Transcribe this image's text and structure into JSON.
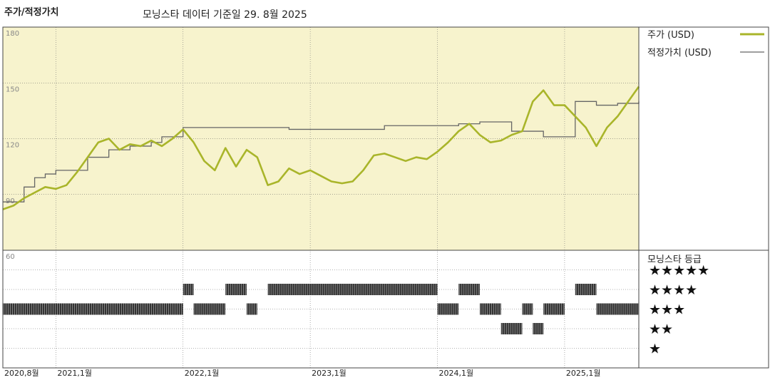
{
  "header": {
    "title": "주가/적정가치",
    "subtitle": "모닝스타 데이터 기준일 29. 8월 2025"
  },
  "legend": {
    "price_label": "주가 (USD)",
    "fair_label": "적정가치 (USD)",
    "rating_title": "모닝스타 등급"
  },
  "colors": {
    "price": "#a9b52a",
    "fair": "#666666",
    "background_top": "#f7f3cd",
    "rating_bar": "#333333"
  },
  "chart_data": {
    "type": "line",
    "title": "",
    "xlabel": "",
    "ylabel": "",
    "ylim": [
      60,
      180
    ],
    "y_ticks": [
      "180",
      "150",
      "120",
      "90",
      "60"
    ],
    "x_ticks": [
      "2020,8월",
      "2021,1월",
      "2022,1월",
      "2023,1월",
      "2024,1월",
      "2025,1월"
    ],
    "x_tick_dates": [
      "2020-08",
      "2021-01",
      "2022-01",
      "2023-01",
      "2024-01",
      "2025-01"
    ],
    "x_range": [
      "2020-08",
      "2025-08"
    ],
    "series": [
      {
        "name": "주가 (USD)",
        "x": [
          "2020-08",
          "2020-09",
          "2020-10",
          "2020-11",
          "2020-12",
          "2021-01",
          "2021-02",
          "2021-03",
          "2021-04",
          "2021-05",
          "2021-06",
          "2021-07",
          "2021-08",
          "2021-09",
          "2021-10",
          "2021-11",
          "2021-12",
          "2022-01",
          "2022-02",
          "2022-03",
          "2022-04",
          "2022-05",
          "2022-06",
          "2022-07",
          "2022-08",
          "2022-09",
          "2022-10",
          "2022-11",
          "2022-12",
          "2023-01",
          "2023-02",
          "2023-03",
          "2023-04",
          "2023-05",
          "2023-06",
          "2023-07",
          "2023-08",
          "2023-09",
          "2023-10",
          "2023-11",
          "2023-12",
          "2024-01",
          "2024-02",
          "2024-03",
          "2024-04",
          "2024-05",
          "2024-06",
          "2024-07",
          "2024-08",
          "2024-09",
          "2024-10",
          "2024-11",
          "2024-12",
          "2025-01",
          "2025-02",
          "2025-03",
          "2025-04",
          "2025-05",
          "2025-06",
          "2025-07",
          "2025-08"
        ],
        "values": [
          82,
          84,
          88,
          91,
          94,
          93,
          95,
          102,
          110,
          118,
          120,
          114,
          117,
          116,
          119,
          116,
          120,
          125,
          118,
          108,
          103,
          115,
          105,
          114,
          110,
          95,
          97,
          104,
          101,
          103,
          100,
          97,
          96,
          97,
          103,
          111,
          112,
          110,
          108,
          110,
          109,
          113,
          118,
          124,
          128,
          122,
          118,
          119,
          122,
          124,
          140,
          146,
          138,
          138,
          132,
          126,
          116,
          126,
          132,
          140,
          148
        ]
      },
      {
        "name": "적정가치 (USD)",
        "x": [
          "2020-08",
          "2020-10",
          "2020-11",
          "2020-12",
          "2021-01",
          "2021-04",
          "2021-06",
          "2021-08",
          "2021-10",
          "2021-11",
          "2022-01",
          "2022-08",
          "2022-11",
          "2023-03",
          "2023-08",
          "2023-11",
          "2024-03",
          "2024-05",
          "2024-08",
          "2024-11",
          "2025-01",
          "2025-02",
          "2025-04",
          "2025-06",
          "2025-08"
        ],
        "values": [
          86,
          94,
          99,
          101,
          103,
          110,
          114,
          116,
          118,
          121,
          126,
          126,
          125,
          125,
          127,
          127,
          128,
          129,
          124,
          121,
          121,
          140,
          138,
          139,
          140
        ]
      }
    ],
    "ratings": {
      "levels": [
        "★★★★★",
        "★★★★",
        "★★★",
        "★★",
        "★"
      ],
      "segments": [
        {
          "stars": 3,
          "start": "2020-08",
          "end": "2022-01"
        },
        {
          "stars": 4,
          "start": "2022-01",
          "end": "2022-02"
        },
        {
          "stars": 3,
          "start": "2022-02",
          "end": "2022-05"
        },
        {
          "stars": 4,
          "start": "2022-05",
          "end": "2022-07"
        },
        {
          "stars": 3,
          "start": "2022-07",
          "end": "2022-08"
        },
        {
          "stars": 4,
          "start": "2022-09",
          "end": "2024-01"
        },
        {
          "stars": 3,
          "start": "2024-01",
          "end": "2024-03"
        },
        {
          "stars": 4,
          "start": "2024-03",
          "end": "2024-05"
        },
        {
          "stars": 3,
          "start": "2024-05",
          "end": "2024-07"
        },
        {
          "stars": 2,
          "start": "2024-07",
          "end": "2024-09"
        },
        {
          "stars": 3,
          "start": "2024-09",
          "end": "2024-10"
        },
        {
          "stars": 2,
          "start": "2024-10",
          "end": "2024-11"
        },
        {
          "stars": 3,
          "start": "2024-11",
          "end": "2025-01"
        },
        {
          "stars": 4,
          "start": "2025-02",
          "end": "2025-04"
        },
        {
          "stars": 3,
          "start": "2025-04",
          "end": "2025-08"
        }
      ]
    }
  }
}
